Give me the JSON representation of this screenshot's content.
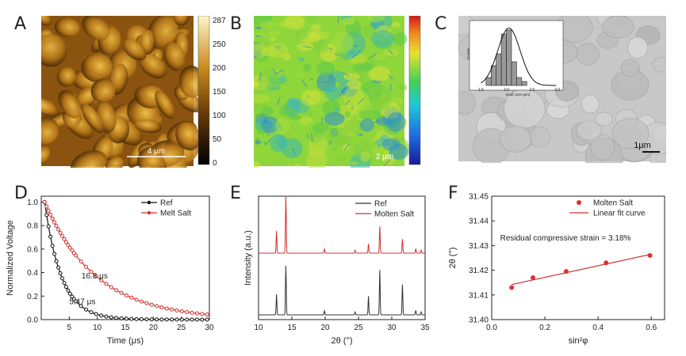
{
  "panels": {
    "A": {
      "label": "A",
      "scalebar": "4 μm",
      "colorbar_ticks": [
        "287",
        "250",
        "200",
        "150",
        "100",
        "50",
        "0"
      ]
    },
    "B": {
      "label": "B",
      "scalebar": "2 μm"
    },
    "C": {
      "label": "C",
      "scalebar": "1μm",
      "inset": {
        "xlabel": "Grain size (μm)",
        "ylabel": "Counts",
        "xticks": [
          "1.5",
          "2.0",
          "2.5",
          "3.0"
        ],
        "hist_counts": [
          2,
          5,
          8,
          13,
          14,
          6,
          2,
          1
        ],
        "bin_start": 1.6,
        "bin_width": 0.1
      }
    }
  },
  "chart_data": [
    {
      "panel": "D",
      "type": "line",
      "xlabel": "Time (μs)",
      "ylabel": "Normalized Voltage",
      "xlim": [
        0,
        30
      ],
      "ylim": [
        0,
        1.05
      ],
      "xticks": [
        "5",
        "10",
        "15",
        "20",
        "25",
        "30"
      ],
      "yticks": [
        "0.0",
        "0.2",
        "0.4",
        "0.6",
        "0.8",
        "1.0"
      ],
      "series": [
        {
          "name": "Ref",
          "color": "#111111",
          "tau": 5.47
        },
        {
          "name": "Melt Salt",
          "color": "#d0312d",
          "tau": 16.8
        }
      ],
      "annotations": [
        "16.8 μs",
        "5.47 μs"
      ],
      "legend": "top-right"
    },
    {
      "panel": "E",
      "type": "line",
      "xlabel": "2θ (°)",
      "ylabel": "Intensity (a.u.)",
      "xlim": [
        10,
        35
      ],
      "xticks": [
        "10",
        "15",
        "20",
        "25",
        "30",
        "35"
      ],
      "series": [
        {
          "name": "Ref",
          "color": "#333333",
          "peaks": [
            [
              12.7,
              0.42
            ],
            [
              14.1,
              1.0
            ],
            [
              19.9,
              0.08
            ],
            [
              24.5,
              0.06
            ],
            [
              26.5,
              0.38
            ],
            [
              28.2,
              0.92
            ],
            [
              31.6,
              0.62
            ],
            [
              33.6,
              0.09
            ],
            [
              34.4,
              0.06
            ]
          ]
        },
        {
          "name": "Molten Salt",
          "color": "#d0312d",
          "peaks": [
            [
              12.7,
              0.38
            ],
            [
              14.1,
              0.98
            ],
            [
              19.9,
              0.07
            ],
            [
              24.5,
              0.05
            ],
            [
              26.5,
              0.16
            ],
            [
              28.2,
              0.46
            ],
            [
              31.6,
              0.24
            ],
            [
              33.6,
              0.07
            ],
            [
              34.4,
              0.05
            ]
          ]
        }
      ],
      "legend": "top-right"
    },
    {
      "panel": "F",
      "type": "scatter",
      "xlabel": "sin²φ",
      "ylabel": "2θ (°)",
      "xlim": [
        0.0,
        0.65
      ],
      "ylim": [
        31.4,
        31.45
      ],
      "xticks": [
        "0.0",
        "0.2",
        "0.4",
        "0.6"
      ],
      "yticks": [
        "31.40",
        "31.41",
        "31.42",
        "31.43",
        "31.44",
        "31.45"
      ],
      "series": [
        {
          "name": "Molten Salt",
          "color": "#e03030",
          "x": [
            0.075,
            0.155,
            0.28,
            0.43,
            0.595
          ],
          "y": [
            31.413,
            31.417,
            31.4195,
            31.423,
            31.426
          ]
        },
        {
          "name": "Linear fit curve",
          "color": "#d03030",
          "fit": [
            [
              0.075,
              31.4142
            ],
            [
              0.6,
              31.4265
            ]
          ]
        }
      ],
      "annotation": "Residual compressive strain = 3.18%",
      "legend": "top-right"
    }
  ]
}
